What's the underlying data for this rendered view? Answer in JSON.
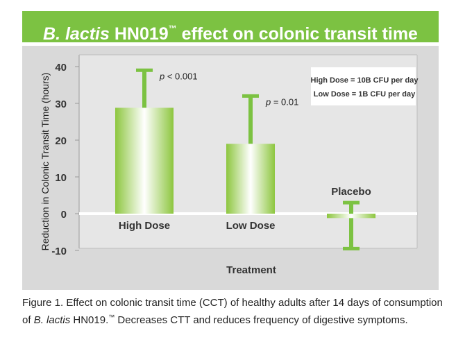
{
  "chart_data": {
    "type": "bar",
    "title_italic": "B. lactis",
    "title_rest": " HN019",
    "title_tm": "™",
    "title_tail": " effect on colonic transit time",
    "categories": [
      "High Dose",
      "Low Dose",
      "Placebo"
    ],
    "values": [
      28.8,
      19,
      -1.2
    ],
    "error_upper": [
      39,
      32,
      3
    ],
    "error_lower": [
      null,
      null,
      -9.5
    ],
    "pvalues": [
      "< 0.001",
      "= 0.01",
      ""
    ],
    "p_letter": "p",
    "xlabel": "Treatment",
    "ylabel": "Reduction in Colonic Transit Time (hours)",
    "yticks": [
      40,
      30,
      20,
      10,
      0,
      -10
    ],
    "ylim": [
      -10,
      40
    ],
    "legend_box": [
      "High Dose = 10B CFU per day",
      "Low Dose = 1B CFU per day"
    ],
    "colors": {
      "bar": "#8dc63f",
      "bar_light": "#ffffff",
      "error": "#7cc242",
      "title_bg": "#7cc242",
      "plot_bg": "#d9d9d9"
    }
  },
  "caption": {
    "part1": "Figure 1.  Effect on colonic transit time (CCT) of healthy adults after 14 days of consumption of ",
    "italic": "B. lactis",
    "part2": " HN019.",
    "tm": "™",
    "part3": " Decreases CTT and reduces frequency of digestive symptoms."
  }
}
